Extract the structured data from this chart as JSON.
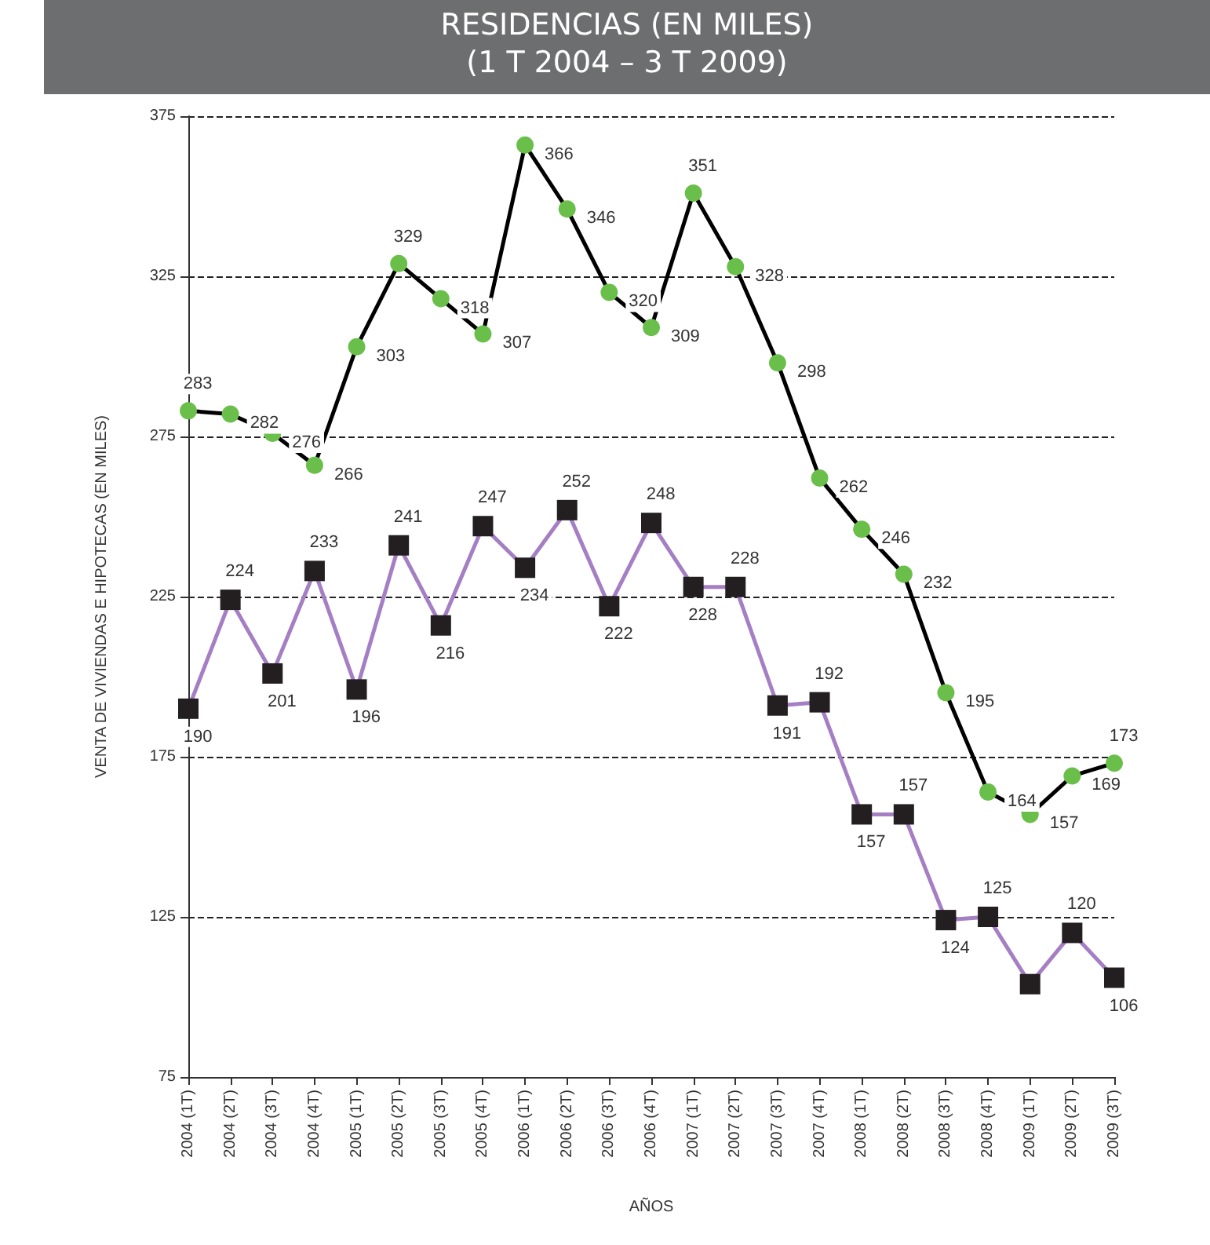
{
  "chart_data": {
    "type": "line",
    "title": "RESIDENCIAS (EN MILES)",
    "subtitle": "(1 T 2004 – 3 T 2009)",
    "xlabel": "AÑOS",
    "ylabel": "VENTA DE VIVIENDAS E HIPOTECAS (EN MILES)",
    "categories": [
      "2004 (1T)",
      "2004 (2T)",
      "2004 (3T)",
      "2004 (4T)",
      "2005 (1T)",
      "2005 (2T)",
      "2005 (3T)",
      "2005 (4T)",
      "2006 (1T)",
      "2006 (2T)",
      "2006 (3T)",
      "2006 (4T)",
      "2007 (1T)",
      "2007 (2T)",
      "2007 (3T)",
      "2007 (4T)",
      "2008 (1T)",
      "2008 (2T)",
      "2008 (3T)",
      "2008 (4T)",
      "2009 (1T)",
      "2009 (2T)",
      "2009 (3T)"
    ],
    "series": [
      {
        "color": "#000000",
        "marker": "circle",
        "colors": [
          "#6abf4b",
          "#6abf4b",
          "#6abf4b",
          "#6abf4b",
          "#6abf4b",
          "#6abf4b",
          "#6abf4b",
          "#6abf4b",
          "#6abf4b",
          "#6abf4b",
          "#6abf4b",
          "#6abf4b",
          "#6abf4b",
          "#6abf4b",
          "#6abf4b",
          "#6abf4b",
          "#6abf4b",
          "#6abf4b",
          "#6abf4b",
          "#6abf4b",
          "#6abf4b",
          "#6abf4b",
          "#6abf4b"
        ],
        "values": [
          283,
          282,
          276,
          266,
          303,
          329,
          318,
          307,
          366,
          346,
          320,
          309,
          351,
          328,
          298,
          262,
          246,
          232,
          195,
          164,
          157,
          169,
          173
        ]
      },
      {
        "color": "#a57fc4",
        "marker": "square",
        "colors": [
          "#231f20",
          "#231f20",
          "#231f20",
          "#231f20",
          "#231f20",
          "#231f20",
          "#231f20",
          "#231f20",
          "#231f20",
          "#231f20",
          "#231f20",
          "#231f20",
          "#231f20",
          "#231f20",
          "#231f20",
          "#231f20",
          "#231f20",
          "#231f20",
          "#231f20",
          "#231f20",
          "#231f20",
          "#231f20",
          "#231f20"
        ],
        "values": [
          190,
          224,
          201,
          233,
          196,
          241,
          216,
          247,
          234,
          252,
          222,
          248,
          228,
          228,
          191,
          192,
          157,
          157,
          124,
          125,
          104,
          120,
          106
        ],
        "value_labels": [
          "190",
          "224",
          "201",
          "233",
          "196",
          "241",
          "216",
          "247",
          "234",
          "252",
          "222",
          "248",
          "228",
          "228",
          "191",
          "192",
          "157",
          "157",
          "124",
          "125",
          null,
          "120",
          "106"
        ]
      }
    ],
    "ylim": [
      75,
      375
    ],
    "yticks": [
      75,
      125,
      175,
      225,
      275,
      325,
      375
    ],
    "grid": "y",
    "data_labels": true,
    "line_style": "solid"
  }
}
